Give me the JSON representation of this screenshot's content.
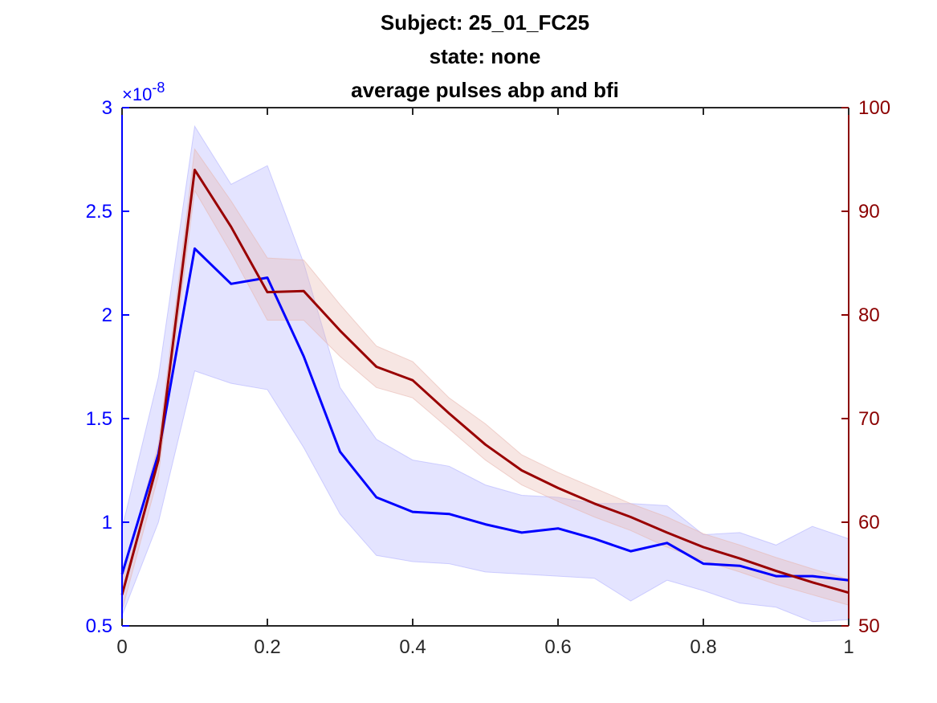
{
  "chart_data": {
    "type": "line",
    "title_lines": [
      "Subject: 25_01_FC25",
      "state: none",
      "average pulses abp and bfi"
    ],
    "x": [
      0,
      0.05,
      0.1,
      0.15,
      0.2,
      0.25,
      0.3,
      0.35,
      0.4,
      0.45,
      0.5,
      0.55,
      0.6,
      0.65,
      0.7,
      0.75,
      0.8,
      0.85,
      0.9,
      0.95,
      1.0
    ],
    "xlim": [
      0,
      1
    ],
    "xticks": [
      0,
      0.2,
      0.4,
      0.6,
      0.8,
      1
    ],
    "xtick_labels": [
      "0",
      "0.2",
      "0.4",
      "0.6",
      "0.8",
      "1"
    ],
    "y_left": {
      "range": [
        0.5,
        3
      ],
      "ticks": [
        0.5,
        1,
        1.5,
        2,
        2.5,
        3
      ],
      "tick_labels": [
        "0.5",
        "1",
        "1.5",
        "2",
        "2.5",
        "3"
      ],
      "exponent_label": "×10",
      "exponent_power": "-8",
      "color": "#0000ff"
    },
    "y_right": {
      "range": [
        50,
        100
      ],
      "ticks": [
        50,
        60,
        70,
        80,
        90,
        100
      ],
      "tick_labels": [
        "50",
        "60",
        "70",
        "80",
        "90",
        "100"
      ],
      "color": "#8b0000"
    },
    "series": [
      {
        "axis": "left",
        "color": "#0000ff",
        "band_color": "#b3b3ff",
        "values": [
          0.75,
          1.33,
          2.32,
          2.15,
          2.18,
          1.8,
          1.34,
          1.12,
          1.05,
          1.04,
          0.99,
          0.95,
          0.97,
          0.92,
          0.86,
          0.9,
          0.8,
          0.79,
          0.74,
          0.74,
          0.72
        ],
        "upper": [
          0.97,
          1.7,
          2.91,
          2.63,
          2.72,
          2.25,
          1.65,
          1.4,
          1.3,
          1.27,
          1.18,
          1.13,
          1.12,
          1.09,
          1.09,
          1.08,
          0.94,
          0.95,
          0.89,
          0.98,
          0.92
        ],
        "lower": [
          0.55,
          1.0,
          1.73,
          1.67,
          1.64,
          1.36,
          1.04,
          0.84,
          0.81,
          0.8,
          0.76,
          0.75,
          0.74,
          0.73,
          0.62,
          0.72,
          0.67,
          0.61,
          0.59,
          0.52,
          0.53
        ]
      },
      {
        "axis": "right",
        "color": "#990000",
        "band_color": "#e8b8b0",
        "values": [
          53.0,
          66.0,
          94.0,
          88.5,
          82.2,
          82.3,
          78.5,
          75.0,
          73.7,
          70.5,
          67.5,
          65.0,
          63.3,
          61.8,
          60.5,
          59.0,
          57.6,
          56.5,
          55.3,
          54.2,
          53.2
        ],
        "upper": [
          54.5,
          67.5,
          96.0,
          91.0,
          85.5,
          85.3,
          81.0,
          77.0,
          75.5,
          72.0,
          69.5,
          66.5,
          64.8,
          63.3,
          61.8,
          60.5,
          58.9,
          57.8,
          56.6,
          55.5,
          54.5
        ],
        "lower": [
          51.5,
          64.5,
          92.0,
          86.0,
          79.5,
          79.5,
          76.0,
          73.0,
          72.0,
          69.0,
          66.0,
          63.6,
          62.0,
          60.5,
          59.2,
          57.6,
          56.3,
          55.2,
          54.0,
          53.0,
          52.0
        ]
      }
    ],
    "grid": false,
    "legend": "none"
  }
}
